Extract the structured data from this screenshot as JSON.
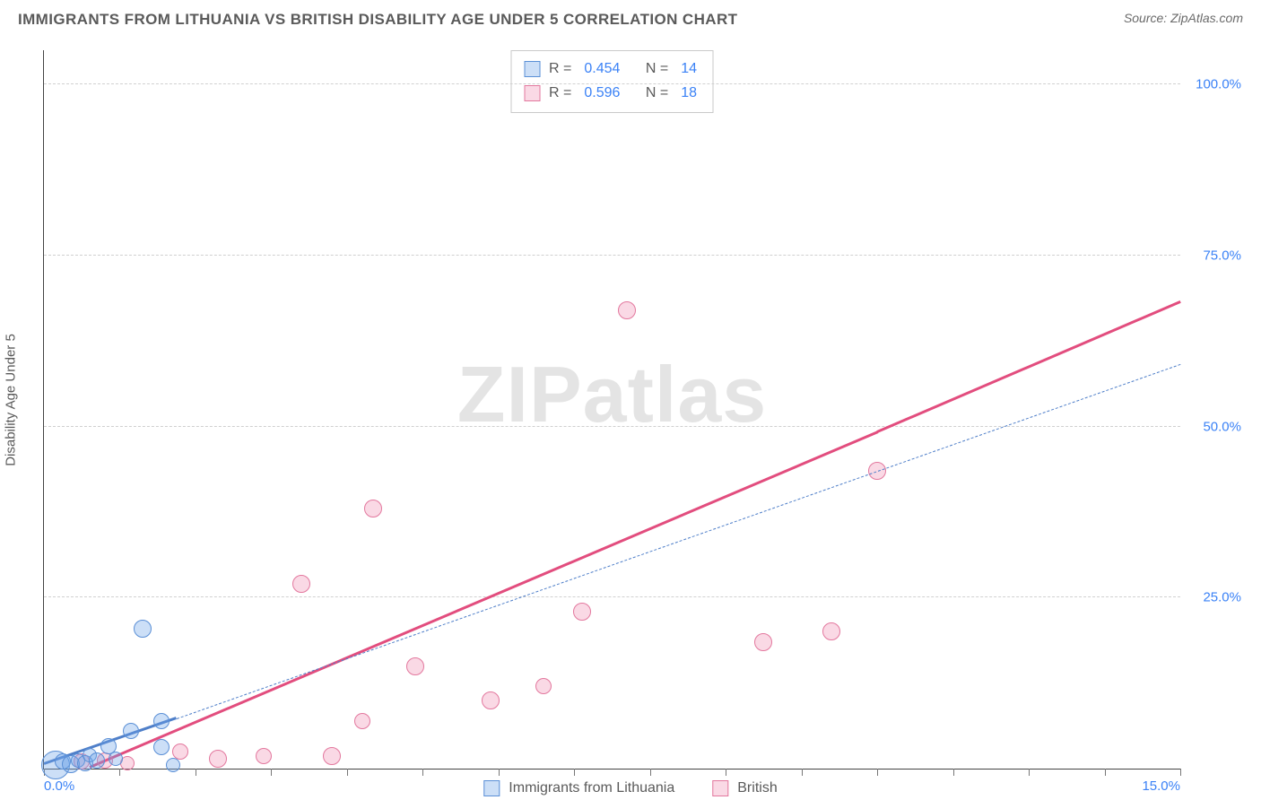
{
  "title": "IMMIGRANTS FROM LITHUANIA VS BRITISH DISABILITY AGE UNDER 5 CORRELATION CHART",
  "source_label": "Source: ZipAtlas.com",
  "ylabel": "Disability Age Under 5",
  "watermark": {
    "bold": "ZIP",
    "rest": "atlas"
  },
  "colors": {
    "series_a_fill": "rgba(108,162,231,0.35)",
    "series_a_stroke": "#5a8fd6",
    "series_b_fill": "rgba(236,120,160,0.28)",
    "series_b_stroke": "#e3789e",
    "trend_a": "#4f7fc9",
    "trend_b": "#e24d7e",
    "axis_text": "#3b82f6",
    "grid": "#d0d0d0",
    "background": "#ffffff"
  },
  "axes": {
    "xlim": [
      0,
      15
    ],
    "ylim": [
      0,
      105
    ],
    "xticks_minor": [
      0,
      1,
      2,
      3,
      4,
      5,
      6,
      7,
      8,
      9,
      10,
      11,
      12,
      13,
      14,
      15
    ],
    "xtick_labels": [
      {
        "x": 0,
        "label": "0.0%"
      },
      {
        "x": 15,
        "label": "15.0%"
      }
    ],
    "ytick_labels": [
      {
        "y": 25,
        "label": "25.0%"
      },
      {
        "y": 50,
        "label": "50.0%"
      },
      {
        "y": 75,
        "label": "75.0%"
      },
      {
        "y": 100,
        "label": "100.0%"
      }
    ],
    "ygrid": [
      25,
      50,
      75,
      100
    ]
  },
  "stats_legend": [
    {
      "series": "a",
      "R_label": "R =",
      "R": "0.454",
      "N_label": "N =",
      "N": "14"
    },
    {
      "series": "b",
      "R_label": "R =",
      "R": "0.596",
      "N_label": "N =",
      "N": "18"
    }
  ],
  "bottom_legend": [
    {
      "series": "a",
      "label": "Immigrants from Lithuania"
    },
    {
      "series": "b",
      "label": "British"
    }
  ],
  "series": {
    "a": {
      "name": "Immigrants from Lithuania",
      "marker_radius": 9,
      "points": [
        {
          "x": 0.15,
          "y": 0.5,
          "r": 16
        },
        {
          "x": 0.25,
          "y": 1.0,
          "r": 9
        },
        {
          "x": 0.35,
          "y": 0.6,
          "r": 10
        },
        {
          "x": 0.45,
          "y": 1.2,
          "r": 8
        },
        {
          "x": 0.55,
          "y": 0.8,
          "r": 9
        },
        {
          "x": 0.6,
          "y": 2.0,
          "r": 8
        },
        {
          "x": 0.7,
          "y": 1.2,
          "r": 9
        },
        {
          "x": 0.85,
          "y": 3.3,
          "r": 9
        },
        {
          "x": 0.95,
          "y": 1.5,
          "r": 8
        },
        {
          "x": 1.15,
          "y": 5.5,
          "r": 9
        },
        {
          "x": 1.3,
          "y": 20.5,
          "r": 10
        },
        {
          "x": 1.55,
          "y": 3.2,
          "r": 9
        },
        {
          "x": 1.55,
          "y": 7.0,
          "r": 9
        },
        {
          "x": 1.7,
          "y": 0.5,
          "r": 8
        }
      ],
      "trend": {
        "x1": 0,
        "y1": 0.5,
        "x2": 1.75,
        "y2": 7.2,
        "dash": false,
        "width": 3
      },
      "trend_ext": {
        "x1": 1.75,
        "y1": 7.2,
        "x2": 15,
        "y2": 59,
        "dash": true,
        "width": 1.5
      }
    },
    "b": {
      "name": "British",
      "marker_radius": 10,
      "points": [
        {
          "x": 0.5,
          "y": 1.0,
          "r": 9
        },
        {
          "x": 0.8,
          "y": 1.2,
          "r": 9
        },
        {
          "x": 1.1,
          "y": 0.8,
          "r": 8
        },
        {
          "x": 1.8,
          "y": 2.5,
          "r": 9
        },
        {
          "x": 2.3,
          "y": 1.5,
          "r": 10
        },
        {
          "x": 2.9,
          "y": 1.8,
          "r": 9
        },
        {
          "x": 3.4,
          "y": 27.0,
          "r": 10
        },
        {
          "x": 3.8,
          "y": 1.8,
          "r": 10
        },
        {
          "x": 4.2,
          "y": 7.0,
          "r": 9
        },
        {
          "x": 4.35,
          "y": 38.0,
          "r": 10
        },
        {
          "x": 4.9,
          "y": 15.0,
          "r": 10
        },
        {
          "x": 5.9,
          "y": 10.0,
          "r": 10
        },
        {
          "x": 6.6,
          "y": 12.0,
          "r": 9
        },
        {
          "x": 7.1,
          "y": 23.0,
          "r": 10
        },
        {
          "x": 7.7,
          "y": 67.0,
          "r": 10
        },
        {
          "x": 9.5,
          "y": 18.5,
          "r": 10
        },
        {
          "x": 10.4,
          "y": 20.0,
          "r": 10
        },
        {
          "x": 11.0,
          "y": 43.5,
          "r": 10
        }
      ],
      "trend": {
        "x1": 0.6,
        "y1": 0,
        "x2": 11.0,
        "y2": 49,
        "dash": false,
        "width": 3
      },
      "trend_ext": {
        "x1": 11.0,
        "y1": 49,
        "x2": 15,
        "y2": 68,
        "dash": false,
        "width": 3
      }
    }
  }
}
